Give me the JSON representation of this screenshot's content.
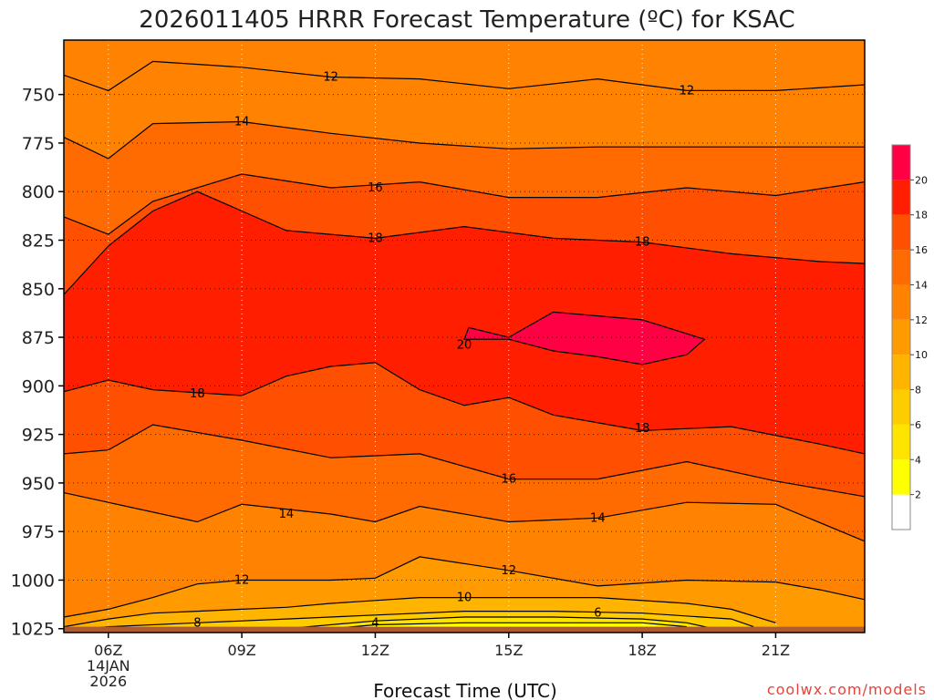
{
  "chart_data": {
    "type": "heatmap",
    "title": "2026011405 HRRR Forecast Temperature (ºC) for KSAC",
    "xlabel": "Forecast Time (UTC)",
    "ylabel": "",
    "x_ticks": [
      {
        "value": 6,
        "label": "06Z",
        "sublabels": [
          "14JAN",
          "2026"
        ]
      },
      {
        "value": 9,
        "label": "09Z"
      },
      {
        "value": 12,
        "label": "12Z"
      },
      {
        "value": 15,
        "label": "15Z"
      },
      {
        "value": 18,
        "label": "18Z"
      },
      {
        "value": 21,
        "label": "21Z"
      }
    ],
    "x_range": [
      5,
      23
    ],
    "y_ticks": [
      750,
      775,
      800,
      825,
      850,
      875,
      900,
      925,
      950,
      975,
      1000,
      1025
    ],
    "y_range": [
      722,
      1027
    ],
    "y_inverted": true,
    "ground_level_hpa": 1024,
    "grid": true,
    "colorbar": {
      "levels": [
        2,
        4,
        6,
        8,
        10,
        12,
        14,
        16,
        18,
        20
      ],
      "colors": [
        "#ffffff",
        "#ffff00",
        "#ffe400",
        "#ffcc00",
        "#ffb400",
        "#ff9b00",
        "#ff8200",
        "#ff6b00",
        "#ff4f00",
        "#ff1e00",
        "#ff0044"
      ]
    },
    "contours": [
      {
        "level": 12,
        "label": "12",
        "points": [
          [
            5,
            740
          ],
          [
            6,
            748
          ],
          [
            7,
            733
          ],
          [
            9,
            736
          ],
          [
            11,
            741
          ],
          [
            13,
            742
          ],
          [
            15,
            747
          ],
          [
            17,
            742
          ],
          [
            19,
            748
          ],
          [
            21,
            748
          ],
          [
            23,
            745
          ]
        ]
      },
      {
        "level": 14,
        "label": "14",
        "points": [
          [
            5,
            772
          ],
          [
            6,
            783
          ],
          [
            7,
            765
          ],
          [
            9,
            764
          ],
          [
            11,
            770
          ],
          [
            13,
            775
          ],
          [
            15,
            778
          ],
          [
            17,
            777
          ],
          [
            19,
            777
          ],
          [
            21,
            777
          ],
          [
            23,
            777
          ]
        ]
      },
      {
        "level": 16,
        "label": "16",
        "points": [
          [
            5,
            813
          ],
          [
            6,
            822
          ],
          [
            7,
            805
          ],
          [
            9,
            791
          ],
          [
            11,
            798
          ],
          [
            13,
            795
          ],
          [
            15,
            803
          ],
          [
            17,
            803
          ],
          [
            19,
            798
          ],
          [
            21,
            802
          ],
          [
            23,
            795
          ]
        ]
      },
      {
        "level": 18,
        "label": "18",
        "points": [
          [
            5,
            853
          ],
          [
            6,
            828
          ],
          [
            7,
            810
          ],
          [
            8,
            800
          ],
          [
            9,
            810
          ],
          [
            10,
            820
          ],
          [
            12,
            824
          ],
          [
            14,
            818
          ],
          [
            16,
            824
          ],
          [
            18,
            826
          ],
          [
            20,
            832
          ],
          [
            22,
            836
          ],
          [
            23,
            837
          ]
        ]
      },
      {
        "level": 18,
        "label": "18",
        "points": [
          [
            5,
            903
          ],
          [
            6,
            897
          ],
          [
            7,
            902
          ],
          [
            9,
            905
          ],
          [
            10,
            895
          ],
          [
            11,
            890
          ],
          [
            12,
            888
          ],
          [
            13,
            902
          ],
          [
            14,
            910
          ],
          [
            15,
            906
          ],
          [
            16,
            915
          ],
          [
            18,
            923
          ],
          [
            20,
            921
          ],
          [
            22,
            930
          ],
          [
            23,
            935
          ]
        ]
      },
      {
        "level": 20,
        "label": "20",
        "points": [
          [
            14,
            876
          ],
          [
            14.1,
            870
          ],
          [
            15,
            875
          ],
          [
            16,
            862
          ],
          [
            17,
            864
          ],
          [
            18,
            866
          ],
          [
            19.4,
            876
          ],
          [
            19,
            884
          ],
          [
            18,
            889
          ],
          [
            17,
            885
          ],
          [
            16,
            882
          ],
          [
            15,
            876
          ]
        ]
      },
      {
        "level": 16,
        "label": "16",
        "points": [
          [
            5,
            935
          ],
          [
            6,
            933
          ],
          [
            7,
            920
          ],
          [
            9,
            928
          ],
          [
            11,
            937
          ],
          [
            13,
            935
          ],
          [
            15,
            948
          ],
          [
            17,
            948
          ],
          [
            19,
            939
          ],
          [
            21,
            949
          ],
          [
            23,
            957
          ]
        ]
      },
      {
        "level": 14,
        "label": "14",
        "points": [
          [
            5,
            955
          ],
          [
            6,
            960
          ],
          [
            8,
            970
          ],
          [
            9,
            961
          ],
          [
            11,
            966
          ],
          [
            12,
            970
          ],
          [
            13,
            962
          ],
          [
            15,
            970
          ],
          [
            17,
            968
          ],
          [
            19,
            960
          ],
          [
            21,
            961
          ],
          [
            23,
            980
          ]
        ]
      },
      {
        "level": 12,
        "label": "12",
        "points": [
          [
            5,
            1019
          ],
          [
            6,
            1015
          ],
          [
            7,
            1009
          ],
          [
            8,
            1002
          ],
          [
            9,
            1000
          ],
          [
            10,
            1000
          ],
          [
            11,
            1000
          ],
          [
            12,
            999
          ],
          [
            13,
            988
          ],
          [
            15,
            995
          ],
          [
            17,
            1003
          ],
          [
            19,
            1000
          ],
          [
            21,
            1001
          ],
          [
            22,
            1005
          ],
          [
            23,
            1010
          ]
        ]
      },
      {
        "level": 10,
        "label": "10",
        "points": [
          [
            5,
            1024
          ],
          [
            6,
            1020
          ],
          [
            7,
            1017
          ],
          [
            8,
            1016
          ],
          [
            9,
            1015
          ],
          [
            10,
            1014
          ],
          [
            11,
            1012
          ],
          [
            13,
            1009
          ],
          [
            15,
            1009
          ],
          [
            17,
            1009
          ],
          [
            19,
            1012
          ],
          [
            20,
            1015
          ],
          [
            21,
            1022
          ]
        ]
      },
      {
        "level": 8,
        "label": "8",
        "points": [
          [
            5,
            1026
          ],
          [
            6,
            1024
          ],
          [
            8,
            1022
          ],
          [
            10,
            1020
          ],
          [
            12,
            1018
          ],
          [
            14,
            1016
          ],
          [
            16,
            1016
          ],
          [
            18,
            1017
          ],
          [
            20,
            1020
          ],
          [
            20.5,
            1024
          ]
        ]
      },
      {
        "level": 6,
        "label": "6",
        "points": [
          [
            10,
            1025
          ],
          [
            12,
            1021
          ],
          [
            14,
            1019
          ],
          [
            16,
            1019
          ],
          [
            18,
            1020
          ],
          [
            19,
            1022
          ],
          [
            19.6,
            1025
          ]
        ]
      },
      {
        "level": 4,
        "label": "4",
        "points": [
          [
            11,
            1025
          ],
          [
            12,
            1023
          ],
          [
            14,
            1022
          ],
          [
            16,
            1022
          ],
          [
            18,
            1022
          ],
          [
            19,
            1024
          ]
        ]
      }
    ],
    "bands": [
      {
        "level": 10,
        "color": "#ffb400",
        "points": [
          [
            5,
            1024
          ],
          [
            6,
            1020
          ],
          [
            7,
            1017
          ],
          [
            8,
            1016
          ],
          [
            9,
            1015
          ],
          [
            10,
            1014
          ],
          [
            11,
            1012
          ],
          [
            13,
            1009
          ],
          [
            15,
            1009
          ],
          [
            17,
            1009
          ],
          [
            19,
            1012
          ],
          [
            20,
            1015
          ],
          [
            21,
            1022
          ],
          [
            21.2,
            1027
          ],
          [
            5,
            1027
          ]
        ]
      },
      {
        "level": 8,
        "color": "#ffcc00",
        "points": [
          [
            5,
            1026
          ],
          [
            6,
            1024
          ],
          [
            8,
            1022
          ],
          [
            10,
            1020
          ],
          [
            12,
            1018
          ],
          [
            14,
            1016
          ],
          [
            16,
            1016
          ],
          [
            18,
            1017
          ],
          [
            20,
            1020
          ],
          [
            20.5,
            1024
          ],
          [
            20.5,
            1027
          ],
          [
            5,
            1027
          ]
        ]
      },
      {
        "level": 6,
        "color": "#ffe400",
        "points": [
          [
            10,
            1025
          ],
          [
            12,
            1021
          ],
          [
            14,
            1019
          ],
          [
            16,
            1019
          ],
          [
            18,
            1020
          ],
          [
            19,
            1022
          ],
          [
            19.6,
            1025
          ],
          [
            19.6,
            1027
          ],
          [
            10,
            1027
          ]
        ]
      },
      {
        "level": 4,
        "color": "#ffff00",
        "points": [
          [
            11,
            1025
          ],
          [
            12,
            1023
          ],
          [
            14,
            1022
          ],
          [
            16,
            1022
          ],
          [
            18,
            1022
          ],
          [
            19,
            1024
          ],
          [
            19,
            1027
          ],
          [
            11,
            1027
          ]
        ]
      }
    ],
    "labels": [
      {
        "x": 11,
        "y": 741,
        "text": "12"
      },
      {
        "x": 19,
        "y": 748,
        "text": "12"
      },
      {
        "x": 9,
        "y": 764,
        "text": "14"
      },
      {
        "x": 12,
        "y": 798,
        "text": "16"
      },
      {
        "x": 12,
        "y": 824,
        "text": "18"
      },
      {
        "x": 18,
        "y": 826,
        "text": "18"
      },
      {
        "x": 14,
        "y": 879,
        "text": "20"
      },
      {
        "x": 8,
        "y": 904,
        "text": "18"
      },
      {
        "x": 18,
        "y": 922,
        "text": "18"
      },
      {
        "x": 15,
        "y": 948,
        "text": "16"
      },
      {
        "x": 10,
        "y": 966,
        "text": "14"
      },
      {
        "x": 17,
        "y": 968,
        "text": "14"
      },
      {
        "x": 9,
        "y": 1000,
        "text": "12"
      },
      {
        "x": 15,
        "y": 995,
        "text": "12"
      },
      {
        "x": 14,
        "y": 1009,
        "text": "10"
      },
      {
        "x": 17,
        "y": 1017,
        "text": "6"
      },
      {
        "x": 8,
        "y": 1022,
        "text": "8"
      },
      {
        "x": 12,
        "y": 1022,
        "text": "4"
      }
    ]
  },
  "footer": {
    "attribution": "coolwx.com/models"
  },
  "colors": {
    "ground": "#b05a2f",
    "attribution": "#e8433a",
    "contour": "#000000"
  }
}
